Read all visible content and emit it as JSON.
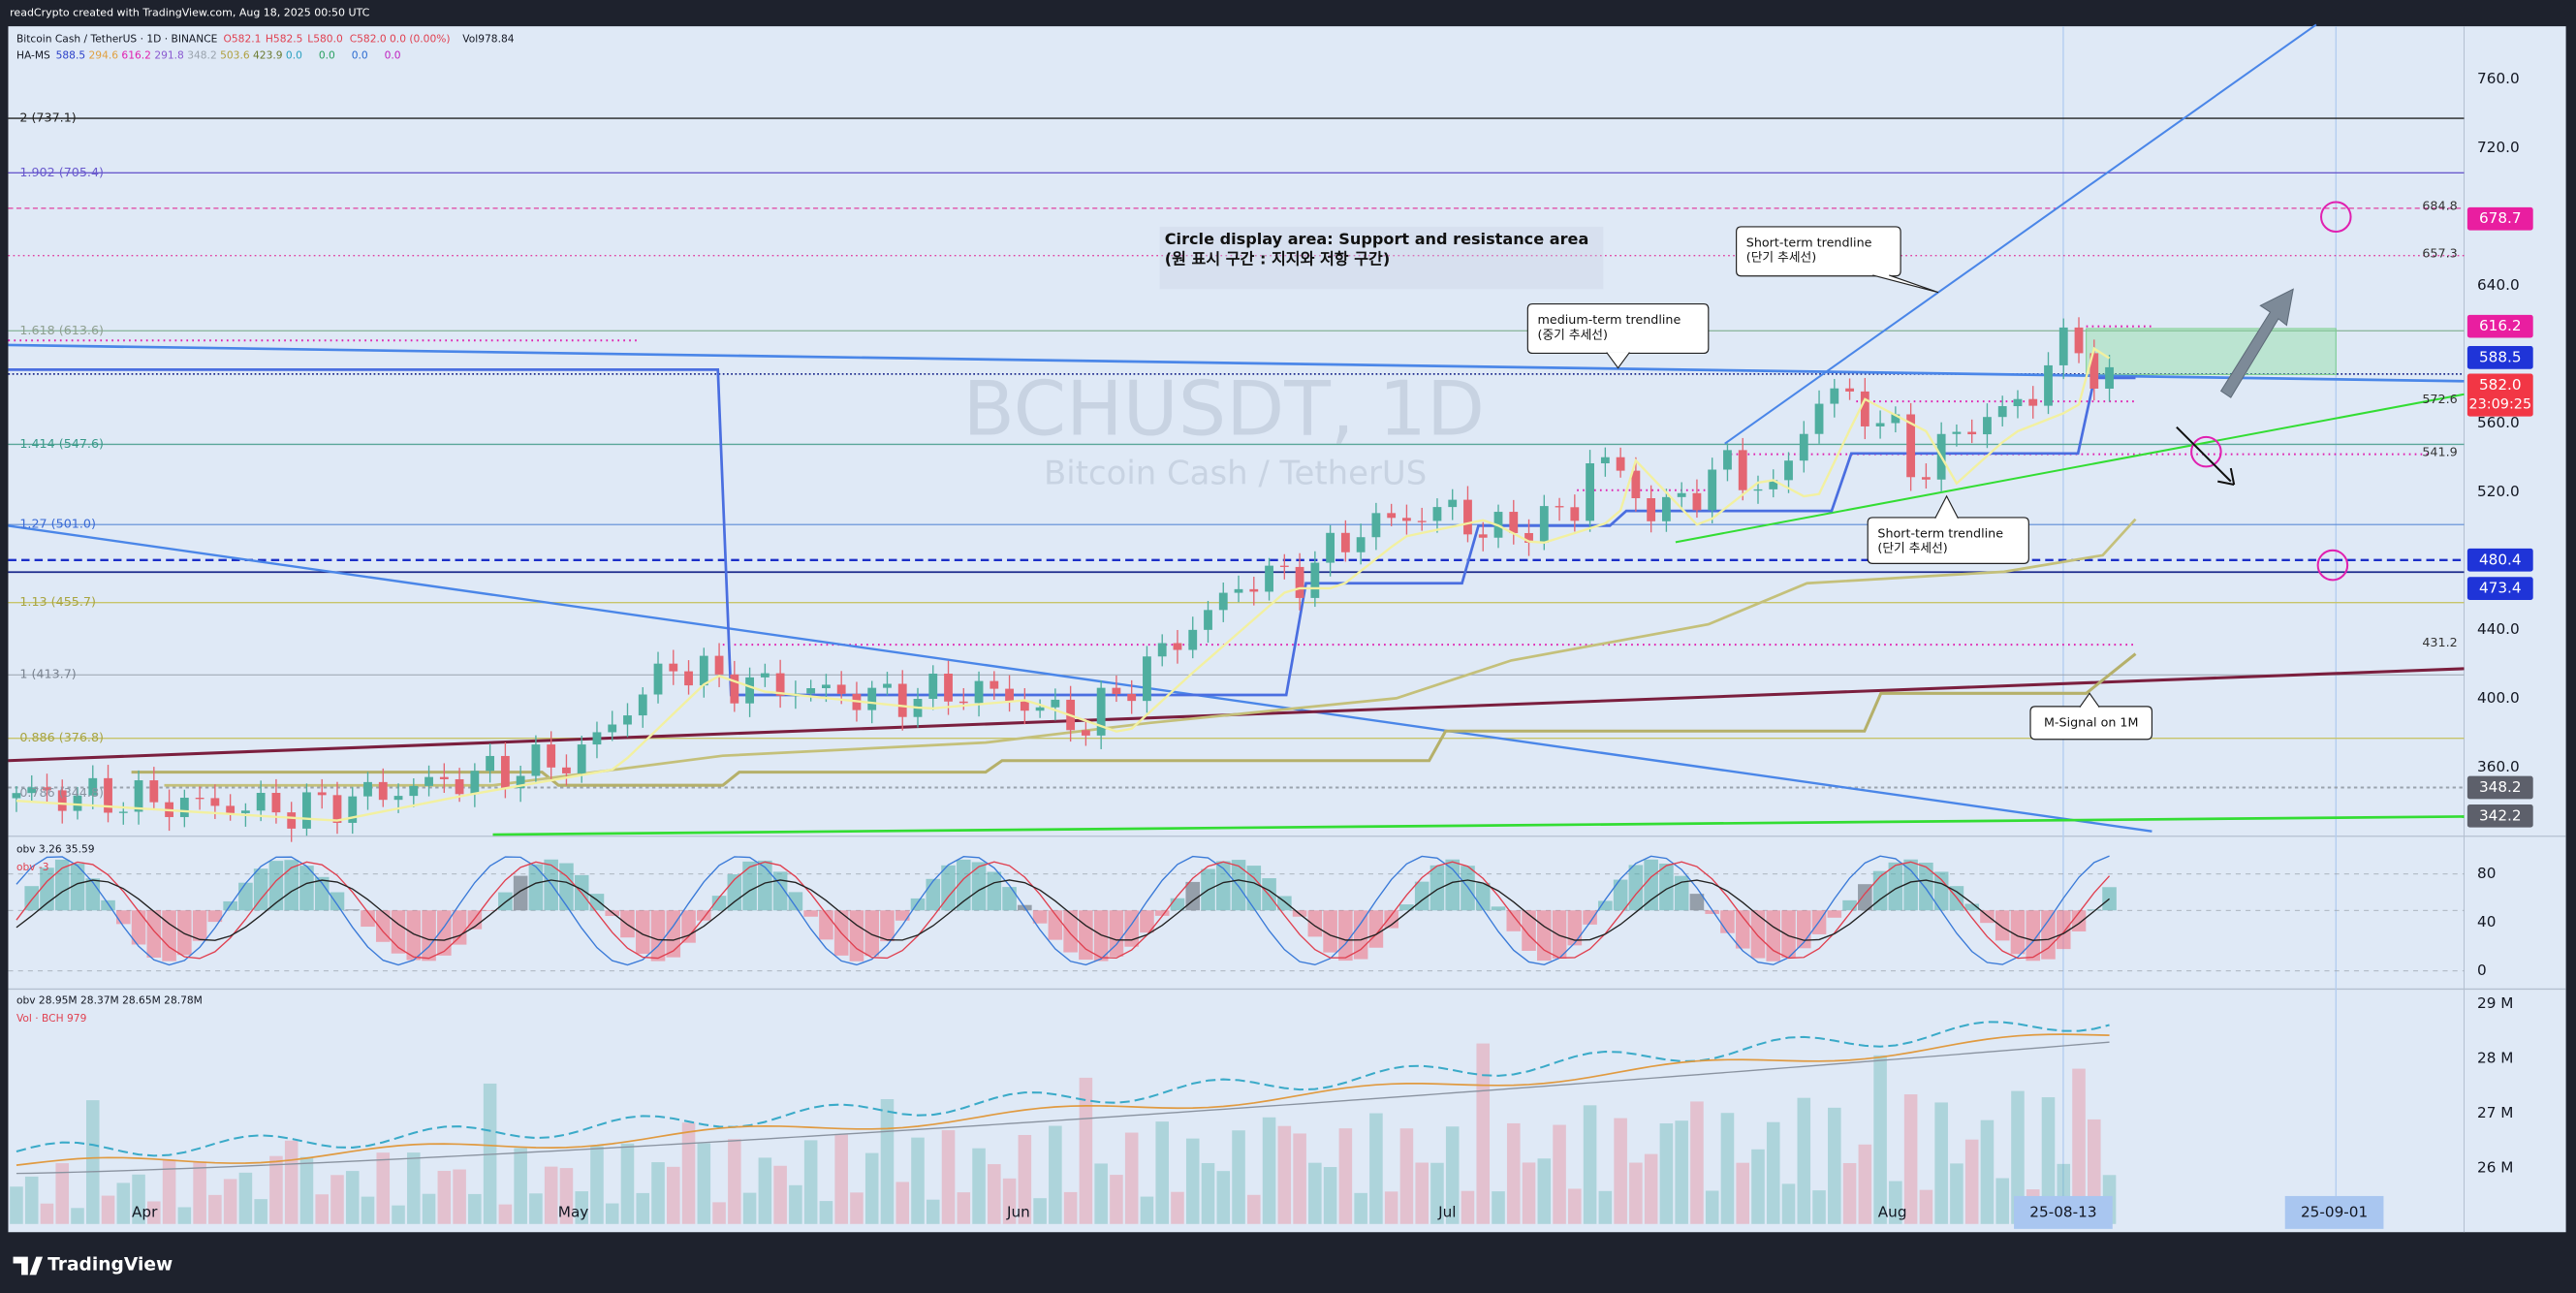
{
  "header": {
    "credit": "readCrypto created with TradingView.com, Aug 18, 2025 00:50 UTC"
  },
  "legend": {
    "symbol": "Bitcoin Cash / TetherUS · 1D · BINANCE",
    "open": "O582.1",
    "high": "H582.5",
    "low": "L580.0",
    "close": "C582.0 0.0 (0.00%)",
    "volume": "Vol978.84",
    "indicator": "HA-MS",
    "indicator_values": [
      "588.5",
      "294.6",
      "616.2",
      "291.8",
      "348.2",
      "503.6",
      "423.9",
      "0.0",
      "0.0",
      "0.0",
      "0.0"
    ]
  },
  "watermark": {
    "symbol": "BCHUSDT, 1D",
    "name": "Bitcoin Cash / TetherUS"
  },
  "price_axis": {
    "ticks": [
      "760.0",
      "720.0",
      "640.0",
      "560.0",
      "520.0",
      "440.0",
      "400.0",
      "360.0"
    ]
  },
  "price_badges": [
    {
      "label": "678.7"
    },
    {
      "label": "616.2"
    },
    {
      "label": "588.5"
    },
    {
      "label": "582.0",
      "countdown": "23:09:25"
    },
    {
      "label": "480.4"
    },
    {
      "label": "473.4"
    },
    {
      "label": "348.2"
    },
    {
      "label": "342.2"
    }
  ],
  "fib_levels": [
    "2 (737.1)",
    "1.902 (705.4)",
    "1.618 (613.6)",
    "1.414 (547.6)",
    "1.27 (501.0)",
    "1.13 (455.7)",
    "1 (413.7)",
    "0.886 (376.8)",
    "0.786 (344.8)"
  ],
  "level_labels": [
    "684.8",
    "657.3",
    "572.6",
    "541.9",
    "431.2"
  ],
  "annotations": {
    "circle_area": {
      "line1": "Circle display area: Support and resistance area",
      "line2": "(원 표시 구간 : 지지와 저항 구간)"
    },
    "short_term_upper": {
      "line1": "Short-term trendline",
      "line2": "(단기 추세선)"
    },
    "medium_term": {
      "line1": "medium-term trendline",
      "line2": "(중기 추세선)"
    },
    "short_term_lower": {
      "line1": "Short-term trendline",
      "line2": "(단기 추세선)"
    },
    "m_signal": "M-Signal on 1M"
  },
  "oscillator": {
    "legend1": "obv 3.26 35.59",
    "legend2": "obv -3",
    "ticks": [
      "80",
      "40",
      "0"
    ]
  },
  "volume": {
    "legend1": "obv 28.95M 28.37M 28.65M 28.78M",
    "legend2": "Vol · BCH 979",
    "ticks": [
      "29 M",
      "28 M",
      "27 M",
      "26 M"
    ]
  },
  "time_axis": {
    "labels": [
      "Apr",
      "May",
      "Jun",
      "Jul",
      "Aug"
    ],
    "highlighted": [
      "25-08-13",
      "25-09-01"
    ]
  },
  "footer": {
    "brand": "TradingView"
  }
}
